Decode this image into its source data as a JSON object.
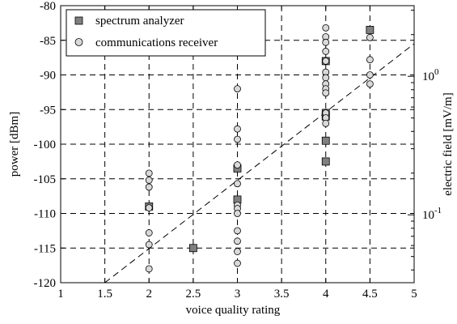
{
  "chart_data": {
    "type": "scatter",
    "xlabel": "voice quality rating",
    "ylabel": "power [dBm]",
    "ylabel_right": "electric field [mV/m]",
    "xlim": [
      1,
      5
    ],
    "ylim": [
      -120,
      -80
    ],
    "x_ticks": [
      1,
      1.5,
      2,
      2.5,
      3,
      3.5,
      4,
      4.5,
      5
    ],
    "x_tick_labels": [
      "1",
      "1.5",
      "2",
      "2.5",
      "3",
      "3.5",
      "4",
      "4.5",
      "5"
    ],
    "y_ticks": [
      -120,
      -115,
      -110,
      -105,
      -100,
      -95,
      -90,
      -85,
      -80
    ],
    "y_tick_labels": [
      "-120",
      "-115",
      "-110",
      "-105",
      "-100",
      "-95",
      "-90",
      "-85",
      "-80"
    ],
    "right_axis": {
      "scale": "log",
      "ticks": [
        {
          "value": -90.2,
          "base": "10",
          "exp": "0"
        },
        {
          "value": -110.2,
          "base": "10",
          "exp": "-1"
        }
      ]
    },
    "grid": true,
    "legend_position": "top-left",
    "series": [
      {
        "name": "spectrum analyzer",
        "marker": "square",
        "color": "#808080",
        "points": [
          {
            "x": 2,
            "y": -109
          },
          {
            "x": 2.5,
            "y": -115
          },
          {
            "x": 3,
            "y": -103.5
          },
          {
            "x": 3,
            "y": -108
          },
          {
            "x": 4,
            "y": -88
          },
          {
            "x": 4,
            "y": -95.5
          },
          {
            "x": 4,
            "y": -96
          },
          {
            "x": 4,
            "y": -99.5
          },
          {
            "x": 4,
            "y": -102.5
          },
          {
            "x": 4.5,
            "y": -83.5
          }
        ]
      },
      {
        "name": "communications receiver",
        "marker": "circle",
        "color": "#d9d9d9",
        "points": [
          {
            "x": 2,
            "y": -104.2
          },
          {
            "x": 2,
            "y": -105.2
          },
          {
            "x": 2,
            "y": -106.2
          },
          {
            "x": 2,
            "y": -109.2
          },
          {
            "x": 2,
            "y": -112.8
          },
          {
            "x": 2,
            "y": -114.5
          },
          {
            "x": 2,
            "y": -118
          },
          {
            "x": 3,
            "y": -92
          },
          {
            "x": 3,
            "y": -97.8
          },
          {
            "x": 3,
            "y": -99.3
          },
          {
            "x": 3,
            "y": -103
          },
          {
            "x": 3,
            "y": -105.7
          },
          {
            "x": 3,
            "y": -108.8
          },
          {
            "x": 3,
            "y": -109.3
          },
          {
            "x": 3,
            "y": -110
          },
          {
            "x": 3,
            "y": -112.5
          },
          {
            "x": 3,
            "y": -114
          },
          {
            "x": 3,
            "y": -115.5
          },
          {
            "x": 3,
            "y": -117.2
          },
          {
            "x": 4,
            "y": -83.2
          },
          {
            "x": 4,
            "y": -84.5
          },
          {
            "x": 4,
            "y": -85.3
          },
          {
            "x": 4,
            "y": -86.6
          },
          {
            "x": 4,
            "y": -88
          },
          {
            "x": 4,
            "y": -89.6
          },
          {
            "x": 4,
            "y": -90.4
          },
          {
            "x": 4,
            "y": -91.3
          },
          {
            "x": 4,
            "y": -92
          },
          {
            "x": 4,
            "y": -92.6
          },
          {
            "x": 4,
            "y": -95.5
          },
          {
            "x": 4,
            "y": -96.2
          },
          {
            "x": 4,
            "y": -97
          },
          {
            "x": 4.5,
            "y": -84.6
          },
          {
            "x": 4.5,
            "y": -87.8
          },
          {
            "x": 4.5,
            "y": -90
          },
          {
            "x": 4.5,
            "y": -91.3
          }
        ]
      }
    ],
    "trend_line": {
      "style": "dashed",
      "from": {
        "x": 1.5,
        "y": -120
      },
      "to": {
        "x": 5,
        "y": -85.5
      }
    }
  }
}
